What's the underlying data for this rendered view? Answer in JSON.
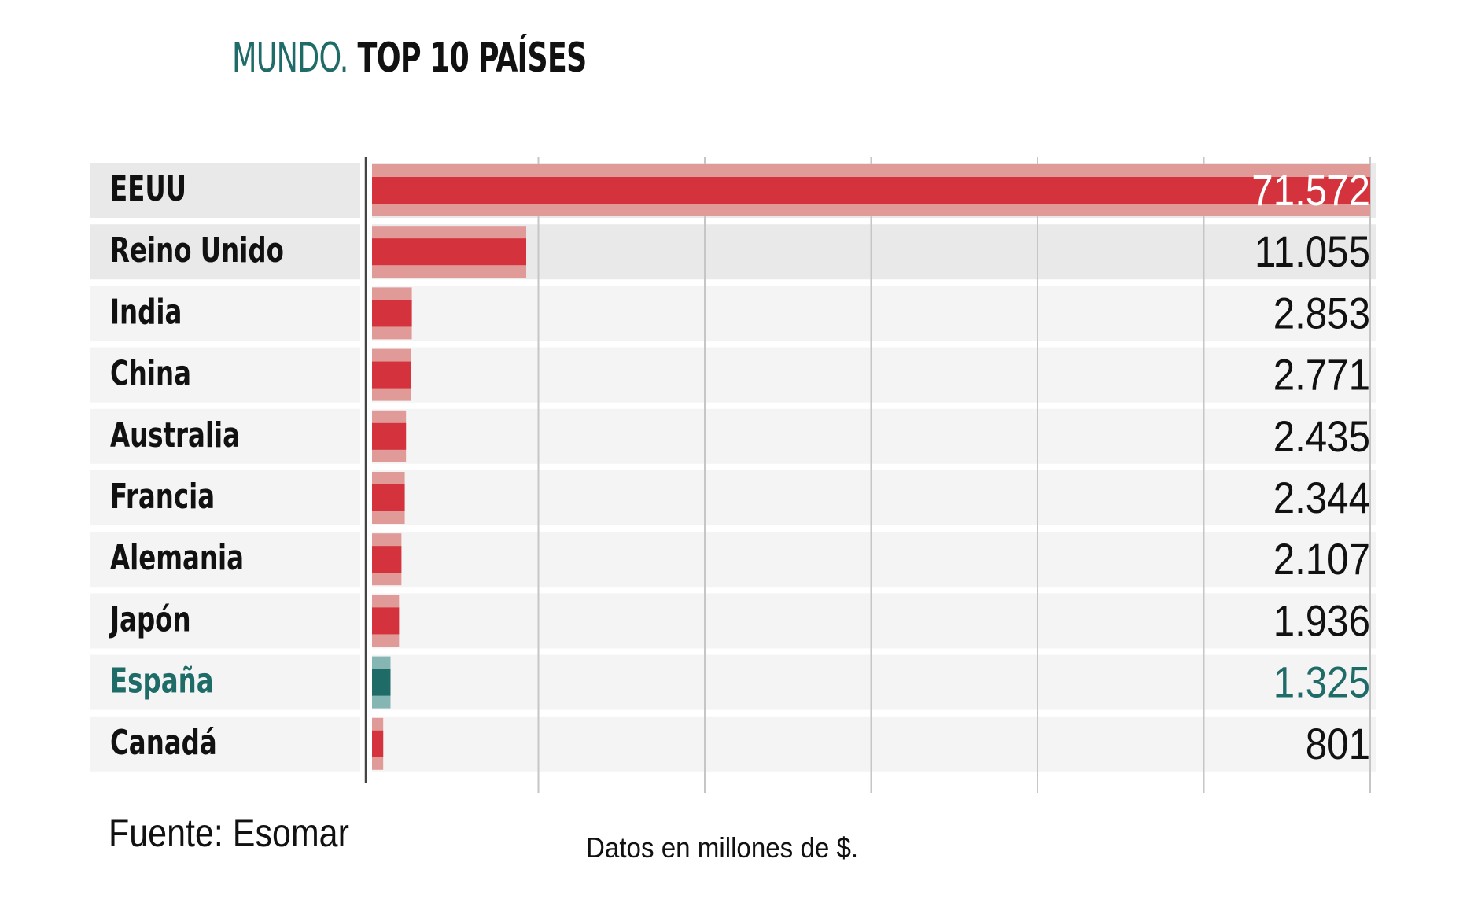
{
  "title": {
    "region": "MUNDO.",
    "text": "TOP 10 PAÍSES"
  },
  "source": "Fuente: Esomar",
  "note": "Datos en millones de $.",
  "colors": {
    "bar": "#d4323c",
    "bar_light": "#e09a98",
    "highlight": "#1e6b68",
    "highlight_light": "#86b6b3",
    "row_dark": "#e9e9e9",
    "row_light": "#f4f4f4",
    "grid": "#c6c6c6",
    "text": "#111111"
  },
  "chart_data": {
    "type": "bar",
    "orientation": "horizontal",
    "categories": [
      "EEUU",
      "Reino Unido",
      "India",
      "China",
      "Australia",
      "Francia",
      "Alemania",
      "Japón",
      "España",
      "Canadá"
    ],
    "values": [
      71572,
      11055,
      2853,
      2771,
      2435,
      2344,
      2107,
      1936,
      1325,
      801
    ],
    "value_labels": [
      "71.572",
      "11.055",
      "2.853",
      "2.771",
      "2.435",
      "2.344",
      "2.107",
      "1.936",
      "1.325",
      "801"
    ],
    "highlight": "España",
    "xlim": [
      0,
      72000
    ],
    "grid": true
  }
}
